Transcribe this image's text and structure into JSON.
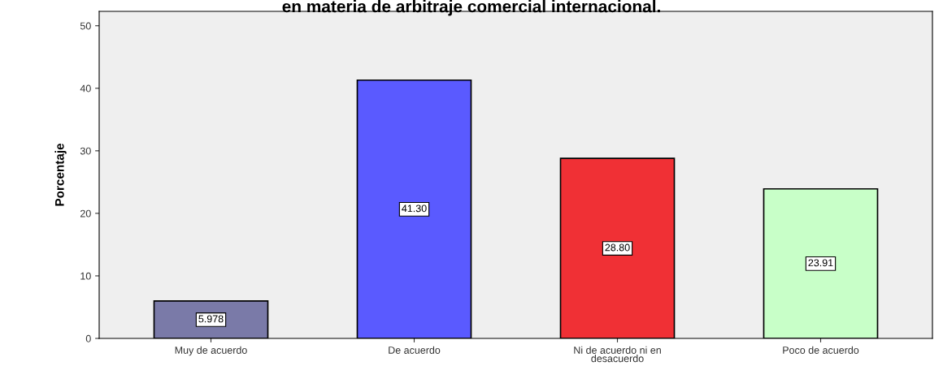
{
  "chart_data": {
    "type": "bar",
    "title": "en materia de arbitraje comercial internacional.",
    "ylabel": "Porcentaje",
    "categories": [
      "Muy de acuerdo",
      "De acuerdo",
      "Ni de acuerdo ni en\ndesacuerdo",
      "Poco de acuerdo"
    ],
    "values": [
      5.978,
      41.3,
      28.8,
      23.91
    ],
    "value_labels": [
      "5.978",
      "41.30",
      "28.80",
      "23.91"
    ],
    "colors": [
      "#7a7aa8",
      "#5a5aff",
      "#f03035",
      "#c8ffc8"
    ],
    "ylim": [
      0,
      52.3
    ],
    "yticks": [
      0,
      10,
      20,
      30,
      40,
      50
    ],
    "grid": false
  }
}
